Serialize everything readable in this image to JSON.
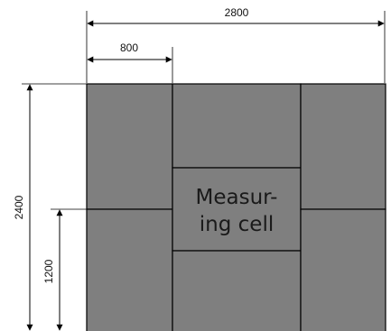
{
  "dimensions": {
    "total_width": "2800",
    "panel_width": "800",
    "total_height": "2400",
    "half_height": "1200"
  },
  "measuring_cell": {
    "line1": "Measur-",
    "line2": "ing cell"
  },
  "colors": {
    "panel_fill": "#7f7f7f",
    "panel_stroke": "#000000",
    "dimension_line": "#000000",
    "background": "#ffffff"
  }
}
